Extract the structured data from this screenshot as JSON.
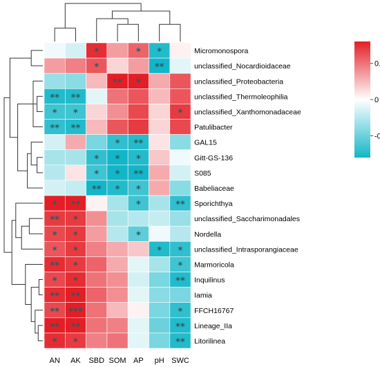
{
  "chart_data": {
    "type": "heatmap",
    "columns": [
      "AN",
      "AK",
      "SBD",
      "SOM",
      "AP",
      "pH",
      "SWC"
    ],
    "rows": [
      "Micromonospora",
      "unclassified_Nocardioidaceae",
      "unclassified_Proteobacteria",
      "unclassified_Thermoleophilia",
      "unclassified_Xanthomonadaceae",
      "Patulibacter",
      "GAL15",
      "Gitt-GS-136",
      "S085",
      "Babeliaceae",
      "Sporichthya",
      "unclassified_Saccharimonadales",
      "Nordella",
      "unclassified_Intrasporangiaceae",
      "Marmoricola",
      "Inquilinus",
      "Iamia",
      "FFCH16767",
      "Lineage_IIa",
      "Litorilinea"
    ],
    "values": [
      [
        -0.05,
        -0.15,
        0.75,
        0.35,
        0.55,
        -0.75,
        0.05
      ],
      [
        0.35,
        0.45,
        0.6,
        0.15,
        0.35,
        -0.8,
        -0.1
      ],
      [
        -0.35,
        -0.4,
        0.25,
        0.85,
        0.8,
        0.3,
        0.6
      ],
      [
        -0.75,
        -0.75,
        -0.1,
        0.5,
        0.6,
        0.25,
        0.6
      ],
      [
        -0.65,
        -0.65,
        0.15,
        0.4,
        0.65,
        0.15,
        0.7
      ],
      [
        -0.7,
        -0.75,
        0.25,
        0.6,
        0.7,
        0.15,
        0.65
      ],
      [
        -0.15,
        0.3,
        -0.45,
        -0.7,
        -0.75,
        0.1,
        -0.4
      ],
      [
        -0.3,
        -0.3,
        -0.7,
        -0.8,
        -0.75,
        0.2,
        -0.05
      ],
      [
        -0.25,
        0.1,
        -0.65,
        -0.8,
        -0.8,
        0.3,
        -0.15
      ],
      [
        -0.15,
        -0.2,
        -0.8,
        -0.75,
        -0.65,
        0.3,
        -0.4
      ],
      [
        0.8,
        0.85,
        0.05,
        -0.3,
        -0.65,
        -0.3,
        -0.7
      ],
      [
        0.7,
        0.7,
        0.4,
        -0.3,
        -0.25,
        -0.2,
        -0.35
      ],
      [
        0.65,
        0.7,
        0.35,
        -0.25,
        -0.55,
        -0.05,
        -0.25
      ],
      [
        0.6,
        0.7,
        0.45,
        0.3,
        0.2,
        -0.75,
        -0.7
      ],
      [
        0.75,
        0.7,
        0.55,
        0.3,
        -0.1,
        -0.3,
        -0.65
      ],
      [
        0.65,
        0.75,
        0.5,
        0.4,
        -0.15,
        -0.45,
        -0.75
      ],
      [
        0.75,
        0.8,
        0.55,
        0.4,
        -0.1,
        -0.4,
        -0.45
      ],
      [
        0.65,
        0.85,
        0.5,
        0.25,
        0.05,
        -0.45,
        -0.7
      ],
      [
        0.8,
        0.85,
        0.5,
        0.45,
        -0.1,
        -0.5,
        -0.75
      ],
      [
        0.75,
        0.7,
        0.45,
        0.5,
        -0.1,
        -0.45,
        -0.75
      ]
    ],
    "significance": [
      [
        "",
        "",
        "*",
        "",
        "*",
        "*",
        ""
      ],
      [
        "",
        "",
        "*",
        "",
        "",
        "**",
        ""
      ],
      [
        "",
        "",
        "",
        "**",
        "*",
        "",
        ""
      ],
      [
        "**",
        "**",
        "",
        "",
        "",
        "",
        ""
      ],
      [
        "*",
        "*",
        "",
        "",
        "",
        "",
        "*"
      ],
      [
        "**",
        "**",
        "",
        "",
        "",
        "",
        ""
      ],
      [
        "",
        "",
        "",
        "*",
        "**",
        "",
        ""
      ],
      [
        "",
        "",
        "*",
        "*",
        "*",
        "",
        ""
      ],
      [
        "",
        "",
        "*",
        "*",
        "**",
        "",
        ""
      ],
      [
        "",
        "",
        "**",
        "*",
        "*",
        "",
        ""
      ],
      [
        "*",
        "**",
        "",
        "",
        "*",
        "",
        "**"
      ],
      [
        "**",
        "*",
        "",
        "",
        "",
        "",
        ""
      ],
      [
        "*",
        "*",
        "",
        "",
        "*",
        "",
        ""
      ],
      [
        "*",
        "*",
        "",
        "",
        "",
        "*",
        "*"
      ],
      [
        "**",
        "*",
        "",
        "",
        "",
        "",
        "*"
      ],
      [
        "*",
        "*",
        "",
        "",
        "",
        "",
        "**"
      ],
      [
        "**",
        "**",
        "",
        "",
        "",
        "",
        ""
      ],
      [
        "**",
        "***",
        "",
        "",
        "",
        "",
        "*"
      ],
      [
        "**",
        "**",
        "",
        "",
        "",
        "",
        "**"
      ],
      [
        "*",
        "*",
        "",
        "",
        "",
        "",
        "**"
      ]
    ],
    "color_scale": {
      "min": -0.8,
      "mid": 0,
      "max": 0.8,
      "low_color": "#13b6c8",
      "mid_color": "#ffffff",
      "high_color": "#e41e26",
      "ticks": [
        {
          "value": 0.5,
          "label": "0.5"
        },
        {
          "value": 0,
          "label": "0"
        },
        {
          "value": -0.5,
          "label": "-0.5"
        }
      ]
    },
    "legend_position": "top-right",
    "star_color": "#2e5a60",
    "row_dendrogram": {
      "merges": [
        [
          0,
          1,
          0.3
        ],
        [
          2,
          5,
          0.25
        ],
        [
          3,
          4,
          0.15
        ],
        [
          21,
          22,
          0.35
        ],
        [
          7,
          8,
          0.15
        ],
        [
          6,
          24,
          0.3
        ],
        [
          25,
          9,
          0.4
        ],
        [
          26,
          23,
          0.65
        ],
        [
          20,
          27,
          0.85
        ],
        [
          15,
          16,
          0.1
        ],
        [
          18,
          19,
          0.12
        ],
        [
          17,
          30,
          0.2
        ],
        [
          29,
          31,
          0.3
        ],
        [
          14,
          32,
          0.45
        ],
        [
          11,
          12,
          0.35
        ],
        [
          34,
          13,
          0.55
        ],
        [
          10,
          35,
          0.7
        ],
        [
          33,
          36,
          0.8
        ],
        [
          28,
          37,
          1.0
        ]
      ]
    },
    "col_dendrogram": {
      "merges": [
        [
          0,
          1,
          0.35
        ],
        [
          3,
          4,
          0.45
        ],
        [
          2,
          8,
          0.6
        ],
        [
          5,
          6,
          0.45
        ],
        [
          9,
          10,
          0.8
        ],
        [
          7,
          11,
          1.0
        ]
      ]
    }
  }
}
